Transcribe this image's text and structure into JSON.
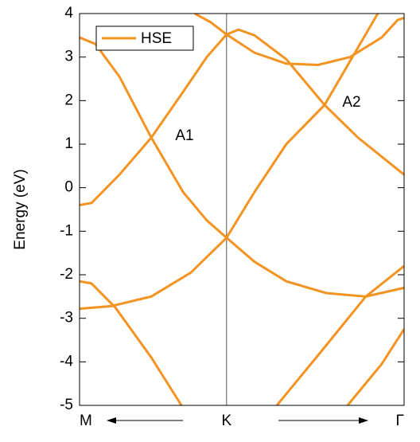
{
  "chart_data": {
    "type": "line",
    "ylabel": "Energy (eV)",
    "xlim": [
      0,
      1
    ],
    "xticks": [
      {
        "value": 0,
        "label": "M"
      },
      {
        "value": 0.453,
        "label": "K"
      },
      {
        "value": 1,
        "label": "Γ"
      }
    ],
    "ylim": [
      -5,
      4
    ],
    "yticks": [
      -5,
      -4,
      -3,
      -2,
      -1,
      0,
      1,
      2,
      3,
      4
    ],
    "legend": "upper left",
    "annotations": [
      {
        "text": "A1"
      },
      {
        "text": "A2"
      }
    ],
    "x": [
      0,
      0.049,
      0.123,
      0.221,
      0.319,
      0.392,
      0.453,
      0.539,
      0.637,
      0.76,
      0.882,
      1,
      null,
      0,
      0.037,
      0.123,
      0.221,
      0.319,
      0.392,
      0.453,
      0.49,
      0.539,
      0.637,
      0.755,
      0.858,
      1,
      null,
      0.355,
      0.404,
      0.453,
      0.539,
      0.637,
      0.735,
      0.833,
      0.931,
      0.98,
      1,
      null,
      0.453,
      0.539,
      0.637,
      0.755,
      0.833,
      0.919,
      null,
      0,
      0.037,
      0.11,
      0.221,
      0.314,
      null,
      0,
      0.098,
      0.221,
      0.343,
      0.453,
      null,
      0.608,
      0.735,
      0.882,
      1,
      null,
      0.826,
      0.931,
      1
    ],
    "series": [
      {
        "name": "HSE",
        "color": "#f39322",
        "values": [
          3.45,
          3.3,
          2.55,
          1.15,
          -0.1,
          -0.75,
          -1.15,
          -1.7,
          -2.15,
          -2.42,
          -2.5,
          -2.3,
          null,
          -0.4,
          -0.35,
          0.3,
          1.15,
          2.2,
          3.0,
          3.52,
          3.63,
          3.5,
          2.95,
          1.9,
          1.15,
          0.3,
          null,
          4.0,
          3.8,
          3.52,
          3.1,
          2.85,
          2.82,
          3.0,
          3.45,
          3.85,
          3.9,
          null,
          -1.15,
          -0.1,
          1.0,
          1.9,
          2.9,
          4.0,
          null,
          -2.15,
          -2.2,
          -2.75,
          -3.9,
          -5,
          null,
          -2.78,
          -2.72,
          -2.5,
          -1.95,
          -1.15,
          null,
          -5,
          -3.85,
          -2.5,
          -1.8,
          null,
          -5,
          -4.05,
          -3.25
        ]
      }
    ]
  }
}
